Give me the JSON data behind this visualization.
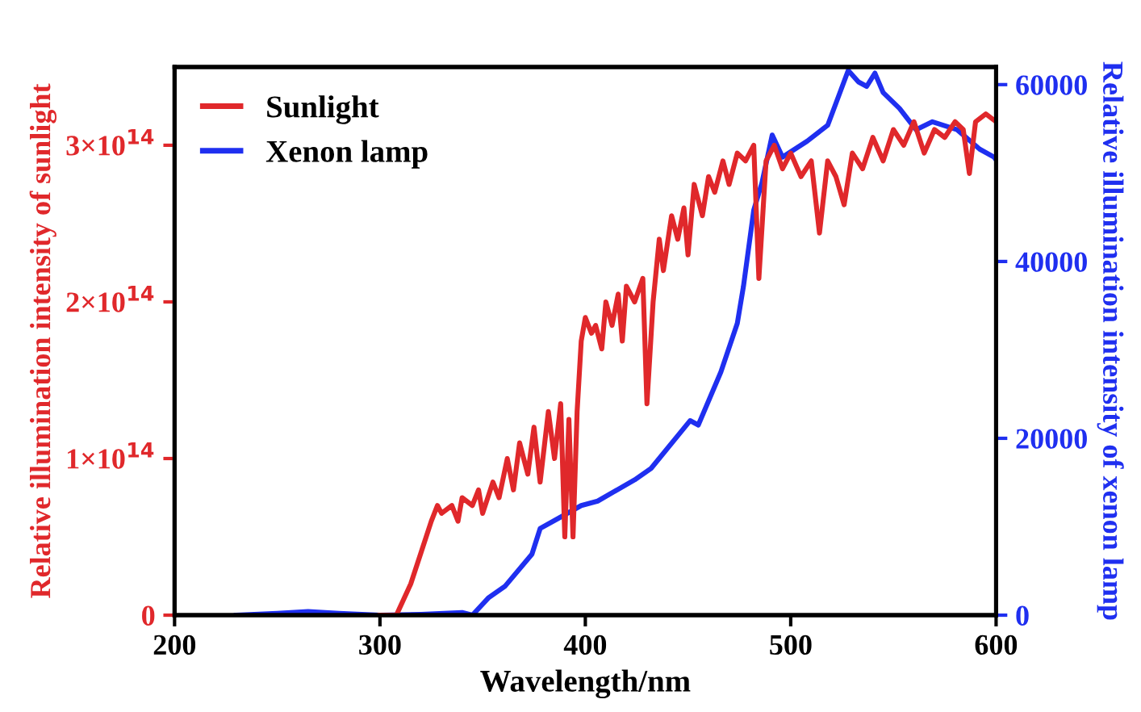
{
  "chart_data": {
    "type": "line",
    "xlabel": "Wavelength/nm",
    "ylabel": "Relative illumination intensity of sunlight",
    "y2label": "Relative illumination intensity of xenon lamp",
    "xlim": [
      200,
      600
    ],
    "xticks": [
      200,
      300,
      400,
      500,
      600
    ],
    "ylim": [
      0,
      350000000000000.0
    ],
    "yticks": [
      0,
      {
        "value": 100000000000000.0,
        "label": "1×10$^{14}$"
      },
      {
        "value": 200000000000000.0,
        "label": "2×10$^{14}$"
      },
      {
        "value": 300000000000000.0,
        "label": "3×10$^{14}$"
      }
    ],
    "y2lim": [
      0,
      62000
    ],
    "y2ticks": [
      0,
      20000,
      40000,
      60000
    ],
    "legend": "top left",
    "grid": false,
    "marker": "none",
    "line_style": "solid",
    "series": [
      {
        "name": "Sunlight",
        "color": "#e0282b",
        "x": [
          300,
          308,
          315,
          320,
          325,
          328,
          330,
          335,
          338,
          340,
          345,
          348,
          350,
          355,
          358,
          362,
          365,
          368,
          372,
          375,
          378,
          382,
          385,
          388,
          390,
          392,
          394,
          396,
          398,
          400,
          403,
          405,
          408,
          410,
          413,
          416,
          418,
          420,
          424,
          428,
          430,
          433,
          436,
          438,
          442,
          445,
          448,
          450,
          453,
          457,
          460,
          463,
          467,
          470,
          474,
          478,
          482,
          484.5,
          488,
          492,
          496,
          500,
          505,
          510,
          514,
          518,
          522,
          526,
          530,
          535,
          540,
          545,
          550,
          555,
          560,
          565,
          570,
          575,
          580,
          584,
          587,
          590,
          595,
          600
        ],
        "values": [
          0,
          0,
          20000000000000.0,
          40000000000000.0,
          60000000000000.0,
          70000000000000.0,
          65000000000000.0,
          70000000000000.0,
          60000000000000.0,
          75000000000000.0,
          70000000000000.0,
          80000000000000.0,
          65000000000000.0,
          85000000000000.0,
          75000000000000.0,
          100000000000000.0,
          80000000000000.0,
          110000000000000.0,
          90000000000000.0,
          120000000000000.0,
          85000000000000.0,
          130000000000000.0,
          100000000000000.0,
          135000000000000.0,
          50000000000000.0,
          125000000000000.0,
          50000000000000.0,
          130000000000000.0,
          175000000000000.0,
          190000000000000.0,
          180000000000000.0,
          185000000000000.0,
          170000000000000.0,
          200000000000000.0,
          185000000000000.0,
          205000000000000.0,
          175000000000000.0,
          210000000000000.0,
          200000000000000.0,
          215000000000000.0,
          135000000000000.0,
          200000000000000.0,
          240000000000000.0,
          220000000000000.0,
          255000000000000.0,
          240000000000000.0,
          260000000000000.0,
          230000000000000.0,
          275000000000000.0,
          255000000000000.0,
          280000000000000.0,
          270000000000000.0,
          290000000000000.0,
          275000000000000.0,
          295000000000000.0,
          290000000000000.0,
          300000000000000.0,
          215000000000000.0,
          290000000000000.0,
          300000000000000.0,
          285000000000000.0,
          295000000000000.0,
          280000000000000.0,
          290000000000000.0,
          244000000000000.0,
          290000000000000.0,
          280000000000000.0,
          262000000000000.0,
          295000000000000.0,
          285000000000000.0,
          305000000000000.0,
          290000000000000.0,
          310000000000000.0,
          300000000000000.0,
          315000000000000.0,
          295000000000000.0,
          310000000000000.0,
          305000000000000.0,
          315000000000000.0,
          310000000000000.0,
          282000000000000.0,
          315000000000000.0,
          320000000000000.0,
          315000000000000.0
        ]
      },
      {
        "name": "Xenon lamp",
        "color": "#1f2ff0",
        "axis": "y2",
        "x": [
          230,
          250,
          265,
          280,
          300,
          320,
          340,
          345,
          353,
          361,
          374,
          378,
          388,
          398,
          406,
          424,
          432,
          451,
          455,
          466,
          474,
          477,
          482,
          486,
          491,
          496,
          508,
          518,
          528,
          533,
          537,
          541,
          545,
          553,
          561,
          569,
          581,
          592,
          599,
          600
        ],
        "values": [
          0,
          200,
          400,
          200,
          0,
          100,
          300,
          0,
          2000,
          3300,
          6900,
          9800,
          11100,
          12400,
          12900,
          15300,
          16600,
          22000,
          21500,
          27500,
          33000,
          37200,
          45800,
          48900,
          54300,
          51800,
          53600,
          55400,
          61600,
          60300,
          59800,
          61300,
          59100,
          57300,
          54900,
          55800,
          54900,
          52700,
          51800,
          51500
        ]
      }
    ]
  }
}
